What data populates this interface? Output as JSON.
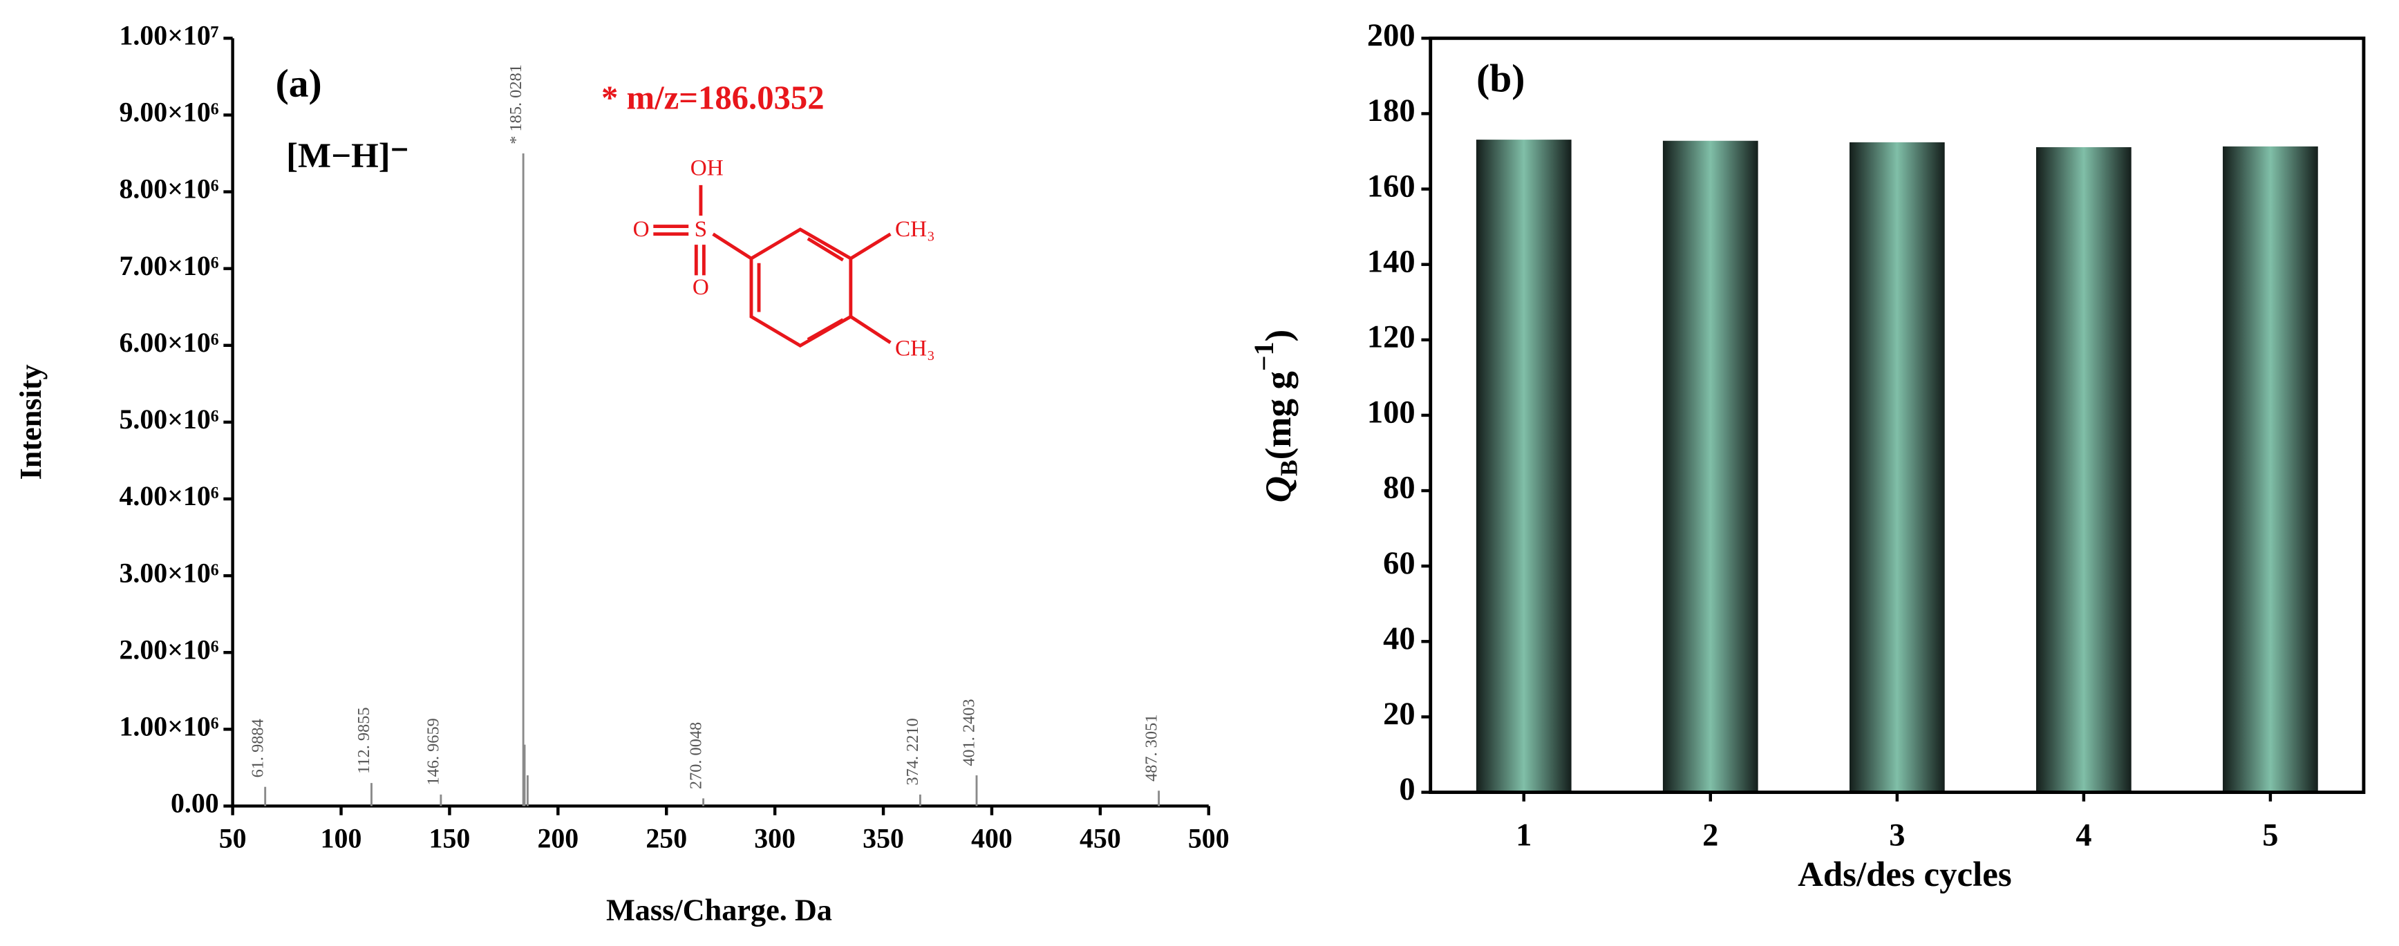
{
  "chart_data": [
    {
      "type": "stem",
      "panel_label": "(a)",
      "ion_label": "[M−H]⁻",
      "mass_note": "* m/z=186.0352",
      "structure_labels": [
        "OH",
        "O",
        "S",
        "O",
        "CH₃",
        "CH₃"
      ],
      "xlabel": "Mass/Charge. Da",
      "ylabel": "Intensity",
      "x": [
        65,
        114,
        146,
        184,
        184.6,
        186,
        267,
        367,
        393,
        477
      ],
      "values": [
        250000,
        300000,
        150000,
        8500000,
        800000,
        400000,
        100000,
        150000,
        400000,
        200000
      ],
      "peak_labels": [
        "61. 9884",
        "112. 9855",
        "146. 9659",
        "* 185. 0281",
        null,
        null,
        "270. 0048",
        "374. 2210",
        "401. 2403",
        "487. 3051"
      ],
      "color": "#8a8a8a",
      "xlim": [
        50,
        500
      ],
      "xticks": [
        50,
        100,
        150,
        200,
        250,
        300,
        350,
        400,
        450,
        500
      ],
      "ylim": [
        0,
        10000000
      ],
      "yticks": [
        {
          "value": 0,
          "label": "0.00"
        },
        {
          "value": 1000000,
          "label": "1.00×10⁶"
        },
        {
          "value": 2000000,
          "label": "2.00×10⁶"
        },
        {
          "value": 3000000,
          "label": "3.00×10⁶"
        },
        {
          "value": 4000000,
          "label": "4.00×10⁶"
        },
        {
          "value": 5000000,
          "label": "5.00×10⁶"
        },
        {
          "value": 6000000,
          "label": "6.00×10⁶"
        },
        {
          "value": 7000000,
          "label": "7.00×10⁶"
        },
        {
          "value": 8000000,
          "label": "8.00×10⁶"
        },
        {
          "value": 9000000,
          "label": "9.00×10⁶"
        },
        {
          "value": 10000000,
          "label": "1.00×10⁷"
        }
      ]
    },
    {
      "type": "bar",
      "panel_label": "(b)",
      "xlabel": "Ads/des cycles",
      "ylabel": {
        "symbol": "Q",
        "subscript": "B",
        "unit": "(mg g",
        "exponent": "−1",
        "close": ")"
      },
      "categories": [
        "1",
        "2",
        "3",
        "4",
        "5"
      ],
      "values": [
        173.1,
        172.8,
        172.4,
        171.1,
        171.3
      ],
      "color": "#80bfa8",
      "edge_color": "#141e1b",
      "ylim": [
        0,
        200
      ],
      "yticks": [
        0,
        20,
        40,
        60,
        80,
        100,
        120,
        140,
        160,
        180,
        200
      ]
    }
  ]
}
